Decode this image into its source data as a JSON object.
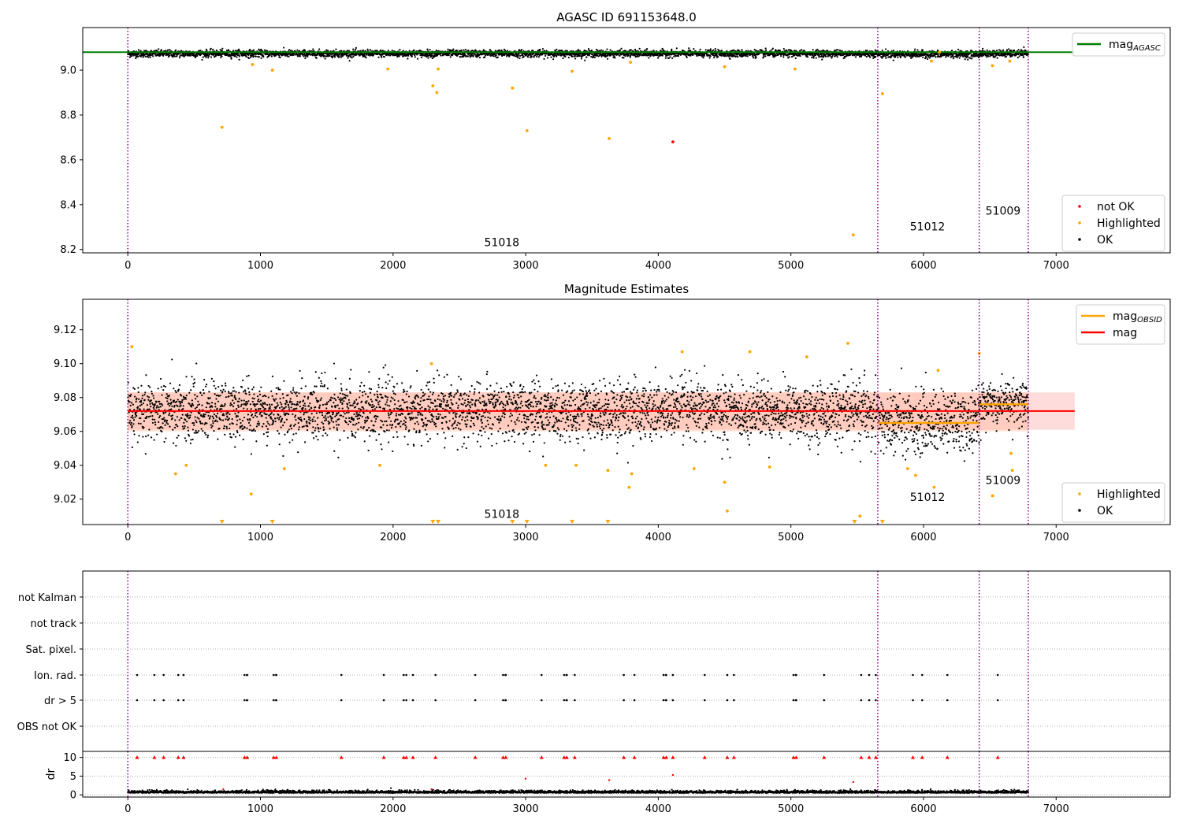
{
  "chart_data": [
    {
      "type": "scatter",
      "title": "AGASC ID 691153648.0",
      "xlim": [
        -340,
        7860
      ],
      "ylim": [
        8.185,
        9.19
      ],
      "yticks": [
        8.2,
        8.4,
        8.6,
        8.8,
        9.0
      ],
      "xticks": [
        0,
        1000,
        2000,
        3000,
        4000,
        5000,
        6000,
        7000
      ],
      "baseline": 9.08,
      "ok_band": [
        9.045,
        9.1
      ],
      "obs_boundaries": [
        0,
        5655,
        6420,
        6790
      ],
      "obs_labels": [
        {
          "text": "51018",
          "x": 2820,
          "y": 8.215
        },
        {
          "text": "51012",
          "x": 6030,
          "y": 8.285
        },
        {
          "text": "51009",
          "x": 6600,
          "y": 8.355
        }
      ],
      "legend_top": {
        "position": "upper-right",
        "entries": [
          {
            "label": "mag",
            "sub": "AGASC",
            "color": "#008000"
          }
        ]
      },
      "legend_bottom": {
        "position": "lower-right",
        "entries": [
          {
            "label": "not OK",
            "color": "#ff0000"
          },
          {
            "label": "Highlighted",
            "color": "#ffa500"
          },
          {
            "label": "OK",
            "color": "#000000"
          }
        ]
      },
      "highlighted": [
        [
          710,
          8.745
        ],
        [
          940,
          9.025
        ],
        [
          1090,
          9.0
        ],
        [
          1960,
          9.005
        ],
        [
          2300,
          8.93
        ],
        [
          2330,
          8.9
        ],
        [
          2340,
          9.005
        ],
        [
          2900,
          8.92
        ],
        [
          3010,
          8.73
        ],
        [
          3350,
          8.995
        ],
        [
          3630,
          8.695
        ],
        [
          3790,
          9.035
        ],
        [
          4500,
          9.015
        ],
        [
          5030,
          9.005
        ],
        [
          5470,
          8.265
        ],
        [
          5690,
          8.895
        ],
        [
          6060,
          9.04
        ],
        [
          6120,
          9.08
        ],
        [
          6520,
          9.02
        ],
        [
          6650,
          9.04
        ]
      ],
      "not_ok": [
        [
          4110,
          8.68
        ]
      ]
    },
    {
      "type": "scatter",
      "title": "Magnitude Estimates",
      "xlim": [
        -340,
        7860
      ],
      "ylim": [
        9.005,
        9.138
      ],
      "yticks": [
        9.02,
        9.04,
        9.06,
        9.08,
        9.1,
        9.12
      ],
      "xticks": [
        0,
        1000,
        2000,
        3000,
        4000,
        5000,
        6000,
        7000
      ],
      "mag": 9.072,
      "mag_band": [
        9.061,
        9.083
      ],
      "obsid_mags": [
        {
          "x0": 5655,
          "x1": 6420,
          "y": 9.065
        },
        {
          "x0": 6420,
          "x1": 6790,
          "y": 9.076
        }
      ],
      "obs_boundaries": [
        0,
        5655,
        6420,
        6790
      ],
      "obs_labels": [
        {
          "text": "51018",
          "x": 2820,
          "y": 9.009
        },
        {
          "text": "51012",
          "x": 6030,
          "y": 9.019
        },
        {
          "text": "51009",
          "x": 6600,
          "y": 9.029
        }
      ],
      "legend_top": {
        "position": "upper-right",
        "entries": [
          {
            "label": "mag",
            "sub": "OBSID",
            "color": "#ffa500"
          },
          {
            "label": "mag",
            "sub": "",
            "color": "#ff0000"
          }
        ]
      },
      "legend_bottom": {
        "position": "lower-right",
        "entries": [
          {
            "label": "Highlighted",
            "color": "#ffa500"
          },
          {
            "label": "OK",
            "color": "#000000"
          }
        ]
      },
      "highlighted": [
        [
          30,
          9.11
        ],
        [
          360,
          9.035
        ],
        [
          440,
          9.04
        ],
        [
          930,
          9.023
        ],
        [
          1180,
          9.038
        ],
        [
          1900,
          9.04
        ],
        [
          2290,
          9.1
        ],
        [
          3150,
          9.04
        ],
        [
          3380,
          9.04
        ],
        [
          3620,
          9.037
        ],
        [
          3780,
          9.027
        ],
        [
          3800,
          9.035
        ],
        [
          4180,
          9.107
        ],
        [
          4270,
          9.038
        ],
        [
          4500,
          9.03
        ],
        [
          4520,
          9.013
        ],
        [
          4690,
          9.107
        ],
        [
          4840,
          9.039
        ],
        [
          5120,
          9.104
        ],
        [
          5430,
          9.112
        ],
        [
          5880,
          9.038
        ],
        [
          5940,
          9.034
        ],
        [
          6080,
          9.027
        ],
        [
          6110,
          9.096
        ],
        [
          6420,
          9.106
        ],
        [
          6660,
          9.047
        ],
        [
          6670,
          9.037
        ],
        [
          6520,
          9.022
        ],
        [
          5520,
          9.01
        ]
      ],
      "clipped": [
        710,
        1090,
        2300,
        2340,
        2900,
        3010,
        3350,
        3620,
        5480,
        5690
      ]
    },
    {
      "type": "scatter",
      "title": "",
      "xlim": [
        -340,
        7860
      ],
      "flag_labels": [
        "not Kalman",
        "not track",
        "Sat. pixel.",
        "Ion. rad.",
        "dr > 5",
        "OBS not OK"
      ],
      "flag_times": [
        70,
        200,
        270,
        380,
        420,
        880,
        900,
        1100,
        1120,
        1610,
        1930,
        2080,
        2100,
        2150,
        2320,
        2620,
        2830,
        2850,
        3120,
        3290,
        3310,
        3370,
        3740,
        3820,
        4040,
        4060,
        4110,
        4350,
        4520,
        4570,
        5020,
        5040,
        5250,
        5530,
        5590,
        5640,
        5920,
        5990,
        6180,
        6560
      ],
      "obs_boundaries": [
        0,
        5655,
        6420,
        6790
      ]
    },
    {
      "type": "scatter",
      "ylabel": "dr",
      "xlim": [
        -340,
        7860
      ],
      "ylim": [
        -0.6,
        11.6
      ],
      "yticks": [
        0,
        5,
        10
      ],
      "xticks": [
        0,
        1000,
        2000,
        3000,
        4000,
        5000,
        6000,
        7000
      ],
      "clip_value": 10,
      "outliers": [
        [
          3000,
          4.3
        ],
        [
          3630,
          3.9
        ],
        [
          4110,
          5.3
        ],
        [
          5470,
          3.4
        ],
        [
          720,
          1.5
        ],
        [
          2290,
          1.5
        ]
      ],
      "clipped": [
        70,
        200,
        270,
        380,
        420,
        880,
        900,
        1100,
        1120,
        1610,
        1930,
        2080,
        2100,
        2150,
        2320,
        2620,
        2830,
        2850,
        3120,
        3290,
        3310,
        3370,
        3740,
        3820,
        4040,
        4060,
        4110,
        4350,
        4520,
        4570,
        5020,
        5040,
        5250,
        5530,
        5590,
        5640,
        5920,
        5990,
        6180,
        6560
      ],
      "obs_boundaries": [
        0,
        5655,
        6420,
        6790
      ]
    }
  ]
}
